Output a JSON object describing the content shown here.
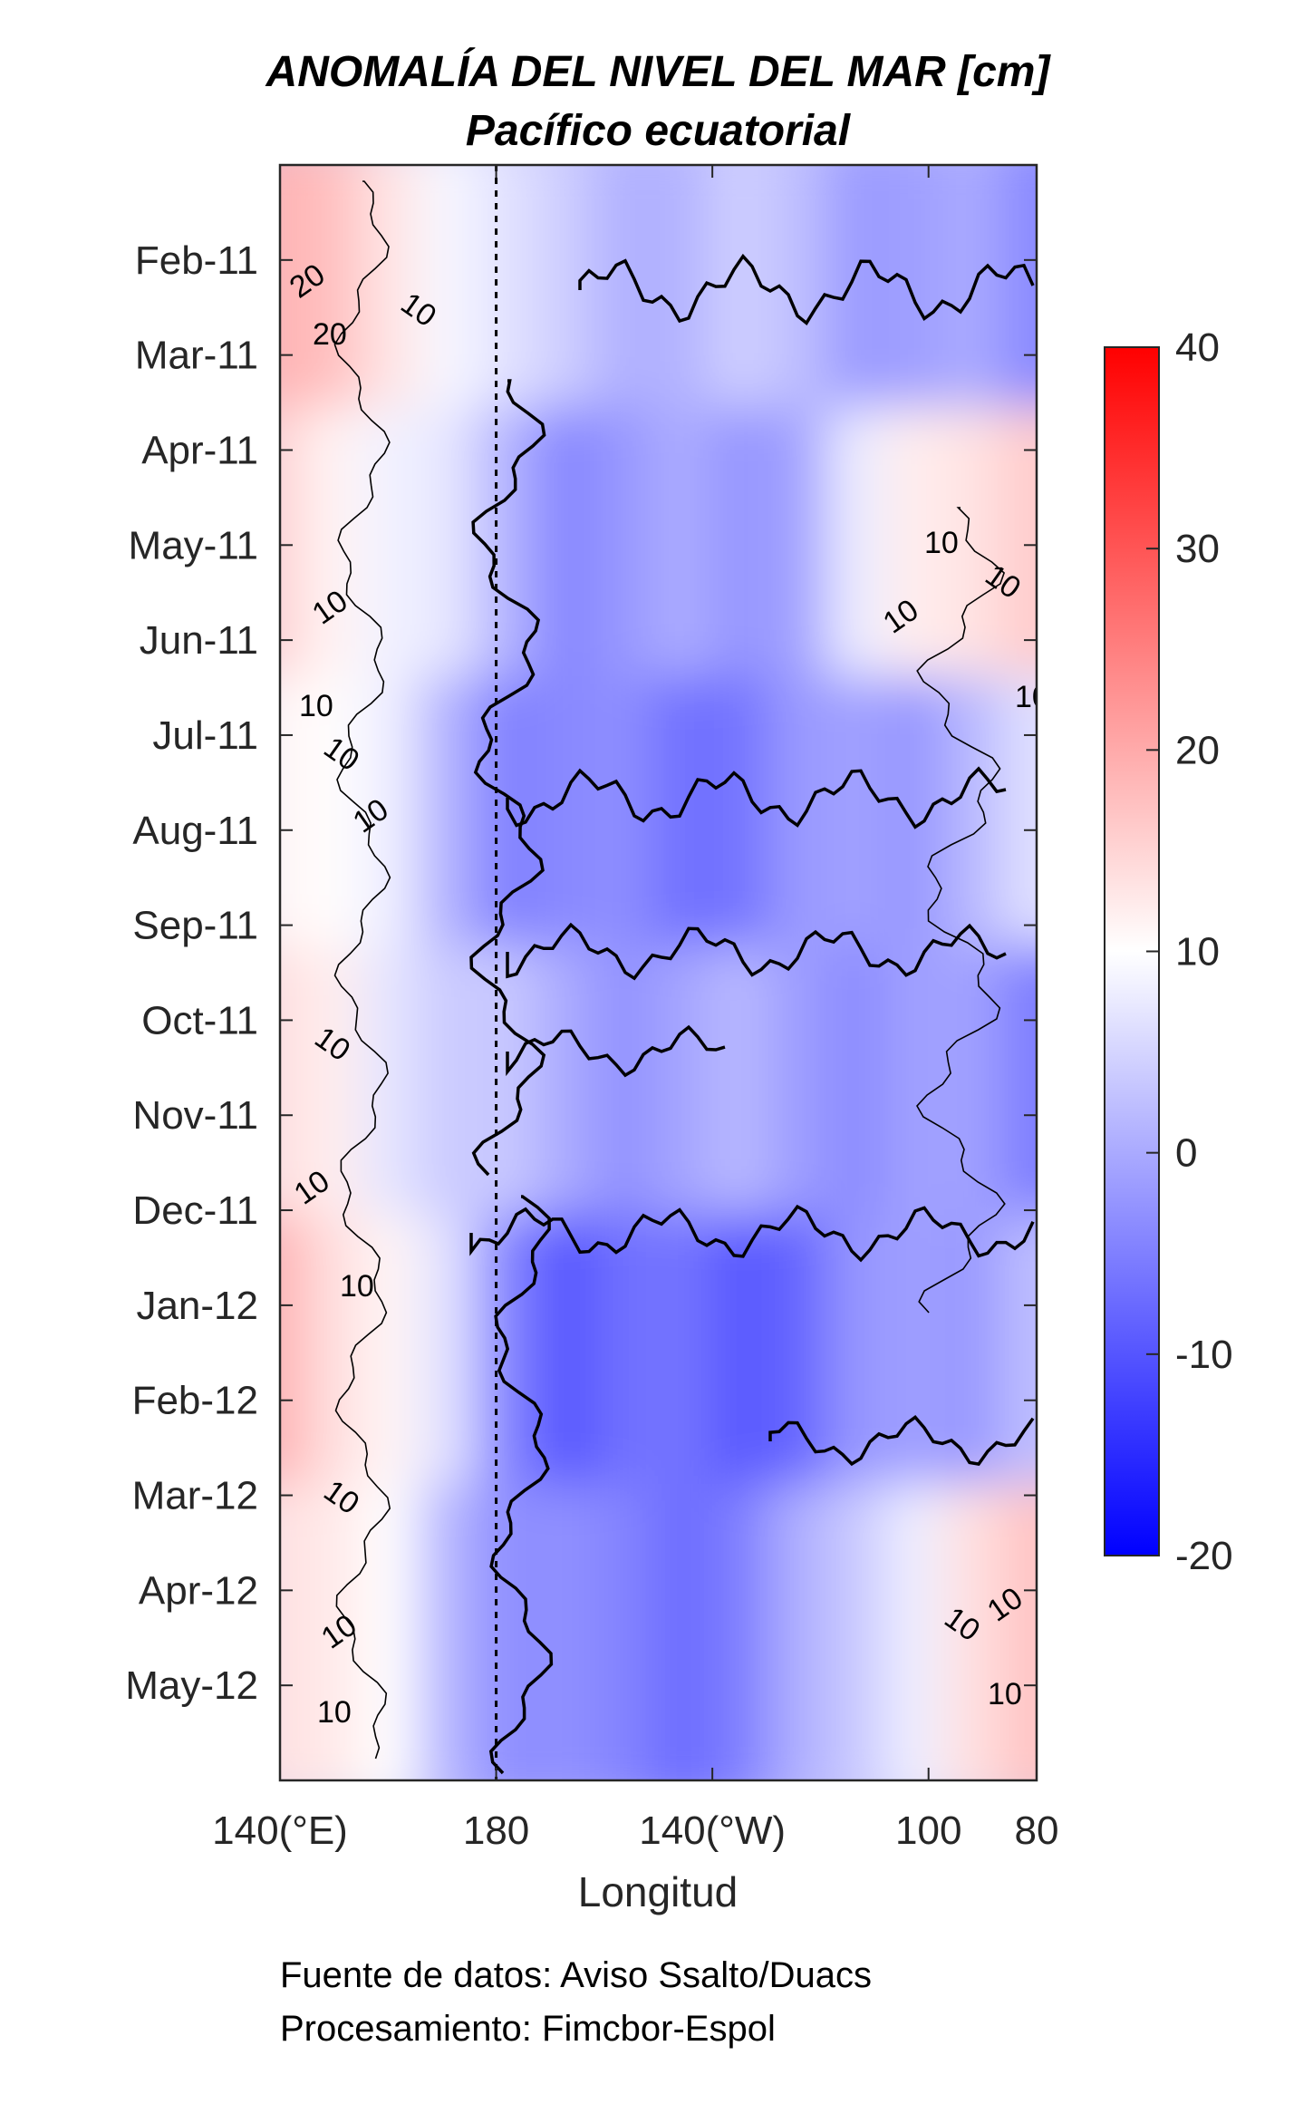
{
  "chart_data": {
    "type": "heatmap",
    "title": "ANOMALÍA DEL NIVEL DEL MAR [cm]",
    "subtitle": "Pacífico ecuatorial",
    "xlabel": "Longitud",
    "ylabel": "",
    "x_ticks": [
      {
        "value": 140,
        "label": "140(°E)"
      },
      {
        "value": 180,
        "label": "180"
      },
      {
        "value": 220,
        "label": "140(°W)"
      },
      {
        "value": 260,
        "label": "100"
      },
      {
        "value": 280,
        "label": "80"
      }
    ],
    "xlim": [
      140,
      280
    ],
    "ylim": [
      "Jan-11",
      "Jun-12"
    ],
    "y_tick_labels": [
      "Feb-11",
      "Mar-11",
      "Apr-11",
      "May-11",
      "Jun-11",
      "Jul-11",
      "Aug-11",
      "Sep-11",
      "Oct-11",
      "Nov-11",
      "Dec-11",
      "Jan-12",
      "Feb-12",
      "Mar-12",
      "Apr-12",
      "May-12"
    ],
    "reference_line": {
      "x": 180,
      "style": "dashed"
    },
    "colorbar": {
      "min": -20,
      "max": 40,
      "ticks": [
        "40",
        "30",
        "20",
        "10",
        "0",
        "-10",
        "-20"
      ],
      "colormap": [
        "#0000ff",
        "#ffffff",
        "#ff0000"
      ]
    },
    "contour_labels": [
      "20",
      "20",
      "10",
      "10",
      "10",
      "10",
      "10",
      "10",
      "10",
      "10",
      "10",
      "10",
      "10",
      "10",
      "10",
      "10",
      "10",
      "10",
      "10",
      "10"
    ],
    "pattern_bands": [
      {
        "period": "Jan-11–Mar-11",
        "west": 12,
        "central": -5,
        "east": -9
      },
      {
        "period": "Apr-11–Jul-11",
        "west": 6,
        "central": -8,
        "east": 9
      },
      {
        "period": "Aug-11–Sep-11",
        "west": 3,
        "central": -10,
        "east": -4
      },
      {
        "period": "Oct-11–Dec-11",
        "west": 4,
        "central": -7,
        "east": -9
      },
      {
        "period": "Jan-12–Mar-12",
        "west": 12,
        "central": -12,
        "east": -5
      },
      {
        "period": "Apr-12–May-12",
        "west": 6,
        "central": -10,
        "east": 8
      }
    ]
  },
  "credits": {
    "source": "Fuente de datos: Aviso Ssalto/Duacs",
    "processing": "Procesamiento: Fimcbor-Espol"
  }
}
